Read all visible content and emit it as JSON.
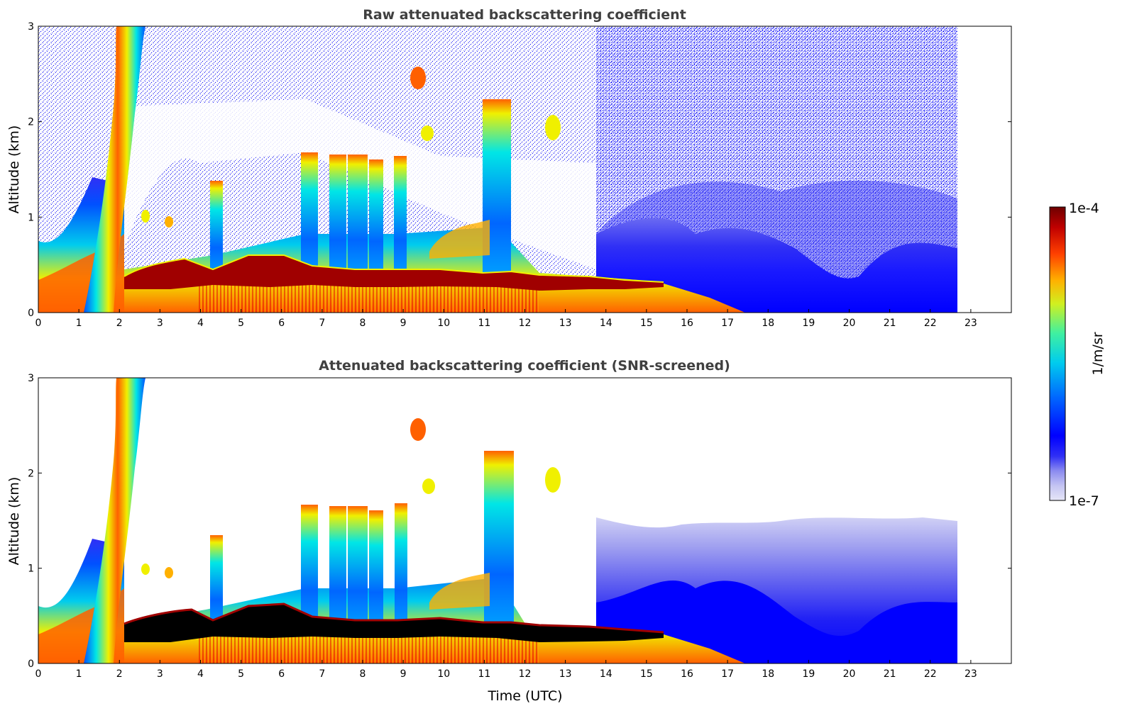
{
  "chart_data": [
    {
      "type": "heatmap",
      "title": "Raw attenuated backscattering coefficient",
      "xlabel": "",
      "ylabel": "Altitude (km)",
      "xlim": [
        0,
        24
      ],
      "ylim": [
        0,
        3
      ],
      "x_ticks": [
        "0",
        "1",
        "2",
        "3",
        "4",
        "5",
        "6",
        "7",
        "8",
        "9",
        "10",
        "11",
        "12",
        "13",
        "14",
        "15",
        "16",
        "17",
        "18",
        "19",
        "20",
        "21",
        "22",
        "23"
      ],
      "y_ticks": [
        "0",
        "1",
        "2",
        "3"
      ],
      "data_end_time": 22.65,
      "colorbar_ref": "colorbar",
      "features": [
        {
          "name": "rising aerosol plume",
          "t_start": 1.5,
          "t_end": 2.5,
          "alt_top": 3.0,
          "intensity": "high"
        },
        {
          "name": "boundary layer cloud layer",
          "t_start": 2.0,
          "t_end": 15.3,
          "alt_base": 0.2,
          "alt_top": 0.45,
          "intensity": "very high"
        },
        {
          "name": "convective columns",
          "t_start": 6.5,
          "t_end": 11.8,
          "alt_top": 2.2,
          "intensity": "high"
        },
        {
          "name": "elevated cloud patch",
          "t_start": 9.1,
          "t_end": 9.6,
          "alt_base": 2.35,
          "alt_top": 2.6,
          "intensity": "high"
        },
        {
          "name": "elevated cloud patch",
          "t_start": 12.5,
          "t_end": 13.4,
          "alt_base": 1.8,
          "alt_top": 2.05,
          "intensity": "medium"
        },
        {
          "name": "nighttime boundary layer",
          "t_start": 13.8,
          "t_end": 22.65,
          "alt_top": 1.0,
          "intensity": "low"
        }
      ]
    },
    {
      "type": "heatmap",
      "title": "Attenuated backscattering coefficient (SNR-screened)",
      "xlabel": "Time (UTC)",
      "ylabel": "Altitude (km)",
      "xlim": [
        0,
        24
      ],
      "ylim": [
        0,
        3
      ],
      "x_ticks": [
        "0",
        "1",
        "2",
        "3",
        "4",
        "5",
        "6",
        "7",
        "8",
        "9",
        "10",
        "11",
        "12",
        "13",
        "14",
        "15",
        "16",
        "17",
        "18",
        "19",
        "20",
        "21",
        "22",
        "23"
      ],
      "y_ticks": [
        "0",
        "1",
        "2",
        "3"
      ],
      "data_end_time": 22.65,
      "colorbar_ref": "colorbar",
      "features": [
        {
          "name": "rising aerosol plume",
          "t_start": 1.5,
          "t_end": 2.5,
          "alt_top": 3.0,
          "intensity": "high"
        },
        {
          "name": "saturated cloud layer",
          "t_start": 2.0,
          "t_end": 15.3,
          "alt_base": 0.2,
          "alt_top": 0.45,
          "intensity": "saturated"
        },
        {
          "name": "convective columns",
          "t_start": 6.5,
          "t_end": 11.8,
          "alt_top": 2.2,
          "intensity": "high"
        },
        {
          "name": "nighttime boundary layer",
          "t_start": 13.8,
          "t_end": 22.65,
          "alt_top": 1.6,
          "intensity": "low"
        }
      ]
    }
  ],
  "colorbar": {
    "label": "1/m/sr",
    "max_label": "1e-4",
    "min_label": "1e-7",
    "scale": "log",
    "min": 1e-07,
    "max": 0.0001,
    "colors": [
      "#e6e6f7",
      "#c4c4f2",
      "#8c8cf0",
      "#3030f5",
      "#0000ff",
      "#0050ff",
      "#00a0ff",
      "#00e6e6",
      "#40f0a0",
      "#a0f050",
      "#f0f000",
      "#ffb000",
      "#ff6000",
      "#e61000",
      "#a00000",
      "#6e0000"
    ]
  }
}
